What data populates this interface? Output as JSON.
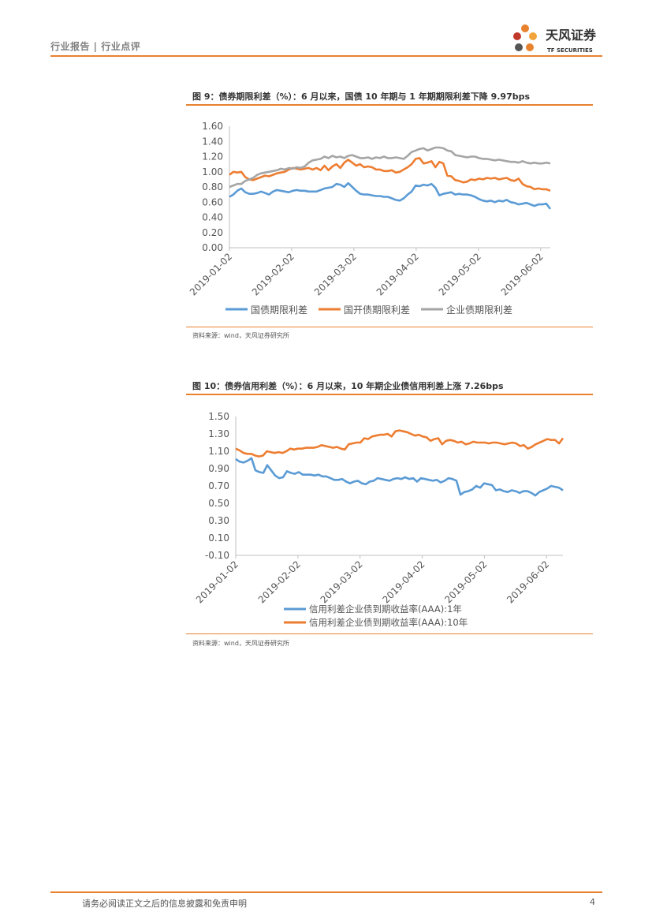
{
  "header": {
    "left_text": "行业报告 | 行业点评",
    "logo_cn": "天风证券",
    "logo_en": "TF SECURITIES"
  },
  "colors": {
    "accent": "#e8822e",
    "blue": "#5b9bd5",
    "orange": "#ed7d31",
    "gray": "#a5a5a5"
  },
  "figures": [
    {
      "title": "图 9：债券期限利差（%）：6 月以来，国债 10 年期与 1 年期期限利差下降 9.97bps",
      "source": "资料来源：wind，天风证券研究所"
    },
    {
      "title": "图 10：债券信用利差（%）：6 月以来，10 年期企业债信用利差上涨 7.26bps",
      "source": "资料来源：wind，天风证券研究所"
    }
  ],
  "chart_data": [
    {
      "type": "line",
      "x_tick_labels": [
        "2019-01-02",
        "2019-02-02",
        "2019-03-02",
        "2019-04-02",
        "2019-05-02",
        "2019-06-02"
      ],
      "y_tick_labels": [
        "0.00",
        "0.20",
        "0.40",
        "0.60",
        "0.80",
        "1.00",
        "1.20",
        "1.40",
        "1.60"
      ],
      "ylim": [
        0,
        1.6
      ],
      "series": [
        {
          "name": "国债期限利差",
          "color": "#5b9bd5",
          "values": [
            0.67,
            0.7,
            0.75,
            0.78,
            0.73,
            0.71,
            0.71,
            0.72,
            0.74,
            0.72,
            0.7,
            0.74,
            0.76,
            0.75,
            0.74,
            0.73,
            0.75,
            0.76,
            0.75,
            0.75,
            0.74,
            0.74,
            0.74,
            0.76,
            0.78,
            0.79,
            0.8,
            0.84,
            0.83,
            0.8,
            0.85,
            0.8,
            0.75,
            0.71,
            0.7,
            0.7,
            0.69,
            0.68,
            0.68,
            0.67,
            0.67,
            0.65,
            0.63,
            0.62,
            0.65,
            0.7,
            0.74,
            0.82,
            0.81,
            0.83,
            0.82,
            0.84,
            0.79,
            0.69,
            0.71,
            0.72,
            0.73,
            0.7,
            0.71,
            0.7,
            0.7,
            0.69,
            0.67,
            0.64,
            0.62,
            0.61,
            0.62,
            0.6,
            0.62,
            0.61,
            0.63,
            0.6,
            0.59,
            0.57,
            0.58,
            0.59,
            0.57,
            0.55,
            0.57,
            0.57,
            0.58,
            0.51
          ]
        },
        {
          "name": "国开债期限利差",
          "color": "#ed7d31",
          "values": [
            0.96,
            1.0,
            0.99,
            1.0,
            0.93,
            0.9,
            0.89,
            0.91,
            0.93,
            0.95,
            0.94,
            0.96,
            0.98,
            0.99,
            1.0,
            1.03,
            1.05,
            1.04,
            1.03,
            1.04,
            1.05,
            1.03,
            1.05,
            1.02,
            1.08,
            1.02,
            1.07,
            1.1,
            1.05,
            1.12,
            1.16,
            1.12,
            1.08,
            1.1,
            1.06,
            1.07,
            1.06,
            1.03,
            1.03,
            1.01,
            1.01,
            1.02,
            0.99,
            1.0,
            1.03,
            1.06,
            1.1,
            1.17,
            1.18,
            1.11,
            1.12,
            1.14,
            1.06,
            1.13,
            1.11,
            0.95,
            0.94,
            0.89,
            0.88,
            0.86,
            0.87,
            0.9,
            0.89,
            0.91,
            0.9,
            0.92,
            0.91,
            0.92,
            0.9,
            0.91,
            0.92,
            0.89,
            0.88,
            0.91,
            0.84,
            0.81,
            0.8,
            0.77,
            0.78,
            0.77,
            0.77,
            0.75
          ]
        },
        {
          "name": "企业债期限利差",
          "color": "#a5a5a5",
          "values": [
            0.8,
            0.82,
            0.84,
            0.84,
            0.88,
            0.9,
            0.92,
            0.96,
            0.98,
            0.99,
            1.0,
            1.01,
            1.02,
            1.04,
            1.03,
            1.05,
            1.04,
            1.06,
            1.05,
            1.07,
            1.12,
            1.15,
            1.16,
            1.17,
            1.2,
            1.18,
            1.21,
            1.19,
            1.2,
            1.18,
            1.21,
            1.22,
            1.2,
            1.18,
            1.18,
            1.19,
            1.17,
            1.19,
            1.18,
            1.2,
            1.18,
            1.18,
            1.19,
            1.18,
            1.17,
            1.21,
            1.26,
            1.28,
            1.3,
            1.31,
            1.28,
            1.3,
            1.32,
            1.32,
            1.31,
            1.28,
            1.27,
            1.22,
            1.21,
            1.2,
            1.19,
            1.2,
            1.2,
            1.18,
            1.17,
            1.17,
            1.16,
            1.15,
            1.16,
            1.15,
            1.14,
            1.13,
            1.13,
            1.12,
            1.14,
            1.12,
            1.11,
            1.12,
            1.11,
            1.11,
            1.12,
            1.11
          ]
        }
      ]
    },
    {
      "type": "line",
      "x_tick_labels": [
        "2019-01-02",
        "2019-02-02",
        "2019-03-02",
        "2019-04-02",
        "2019-05-02",
        "2019-06-02"
      ],
      "y_tick_labels": [
        "-0.10",
        "0.10",
        "0.30",
        "0.50",
        "0.70",
        "0.90",
        "1.10",
        "1.30",
        "1.50"
      ],
      "ylim": [
        -0.1,
        1.5
      ],
      "series": [
        {
          "name": "信用利差企业债到期收益率(AAA):1年",
          "color": "#5b9bd5",
          "values": [
            1.01,
            0.98,
            0.97,
            0.99,
            1.02,
            0.88,
            0.86,
            0.85,
            0.94,
            0.88,
            0.82,
            0.79,
            0.8,
            0.87,
            0.85,
            0.84,
            0.86,
            0.83,
            0.83,
            0.83,
            0.82,
            0.83,
            0.81,
            0.81,
            0.79,
            0.77,
            0.77,
            0.78,
            0.75,
            0.73,
            0.75,
            0.76,
            0.73,
            0.72,
            0.75,
            0.76,
            0.79,
            0.78,
            0.77,
            0.76,
            0.78,
            0.79,
            0.78,
            0.8,
            0.78,
            0.79,
            0.75,
            0.79,
            0.78,
            0.77,
            0.76,
            0.77,
            0.74,
            0.76,
            0.79,
            0.78,
            0.76,
            0.6,
            0.63,
            0.64,
            0.66,
            0.7,
            0.68,
            0.73,
            0.72,
            0.71,
            0.65,
            0.66,
            0.64,
            0.63,
            0.65,
            0.64,
            0.62,
            0.64,
            0.64,
            0.62,
            0.59,
            0.63,
            0.65,
            0.67,
            0.7,
            0.69,
            0.68,
            0.65
          ]
        },
        {
          "name": "信用利差企业债到期收益率(AAA):10年",
          "color": "#ed7d31",
          "values": [
            1.13,
            1.11,
            1.08,
            1.07,
            1.07,
            1.05,
            1.04,
            1.05,
            1.1,
            1.09,
            1.08,
            1.09,
            1.08,
            1.1,
            1.13,
            1.12,
            1.13,
            1.13,
            1.14,
            1.14,
            1.14,
            1.15,
            1.17,
            1.16,
            1.15,
            1.14,
            1.15,
            1.13,
            1.12,
            1.18,
            1.19,
            1.2,
            1.2,
            1.25,
            1.24,
            1.27,
            1.28,
            1.29,
            1.29,
            1.3,
            1.27,
            1.33,
            1.34,
            1.33,
            1.32,
            1.3,
            1.28,
            1.29,
            1.27,
            1.26,
            1.22,
            1.24,
            1.25,
            1.18,
            1.22,
            1.23,
            1.22,
            1.2,
            1.21,
            1.18,
            1.19,
            1.21,
            1.2,
            1.2,
            1.2,
            1.19,
            1.2,
            1.2,
            1.19,
            1.18,
            1.19,
            1.2,
            1.19,
            1.16,
            1.17,
            1.13,
            1.15,
            1.18,
            1.2,
            1.22,
            1.24,
            1.23,
            1.23,
            1.19,
            1.25
          ]
        }
      ]
    }
  ],
  "footer": {
    "text": "请务必阅读正文之后的信息披露和免责申明",
    "page_number": "4"
  }
}
